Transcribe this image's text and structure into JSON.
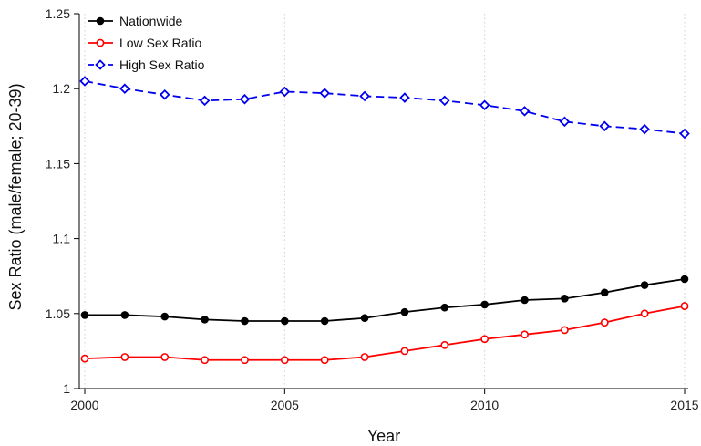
{
  "chart_data": {
    "type": "line",
    "title": "",
    "xlabel": "Year",
    "ylabel": "Sex Ratio (male/female; 20-39)",
    "xlim": [
      2000,
      2015
    ],
    "ylim": [
      1.0,
      1.25
    ],
    "x_ticks": [
      "2000",
      "2005",
      "2010",
      "2015"
    ],
    "y_ticks": [
      "1",
      "1.05",
      "1.1",
      "1.15",
      "1.2",
      "1.25"
    ],
    "grid": "dotted vertical at x ticks",
    "legend_position": "top-left",
    "x": [
      2000,
      2001,
      2002,
      2003,
      2004,
      2005,
      2006,
      2007,
      2008,
      2009,
      2010,
      2011,
      2012,
      2013,
      2014,
      2015
    ],
    "series": [
      {
        "name": "Nationwide",
        "color": "#000000",
        "marker": "filled-circle",
        "line": "solid",
        "values": [
          1.049,
          1.049,
          1.048,
          1.046,
          1.045,
          1.045,
          1.045,
          1.047,
          1.051,
          1.054,
          1.056,
          1.059,
          1.06,
          1.064,
          1.069,
          1.073
        ]
      },
      {
        "name": "Low Sex Ratio",
        "color": "#ff0000",
        "marker": "hollow-circle",
        "line": "solid",
        "values": [
          1.02,
          1.021,
          1.021,
          1.019,
          1.019,
          1.019,
          1.019,
          1.021,
          1.025,
          1.029,
          1.033,
          1.036,
          1.039,
          1.044,
          1.05,
          1.055
        ]
      },
      {
        "name": "High Sex Ratio",
        "color": "#0000ee",
        "marker": "hollow-diamond",
        "line": "dashed",
        "values": [
          1.205,
          1.2,
          1.196,
          1.192,
          1.193,
          1.198,
          1.197,
          1.195,
          1.194,
          1.192,
          1.189,
          1.185,
          1.178,
          1.175,
          1.173,
          1.17
        ]
      }
    ]
  }
}
